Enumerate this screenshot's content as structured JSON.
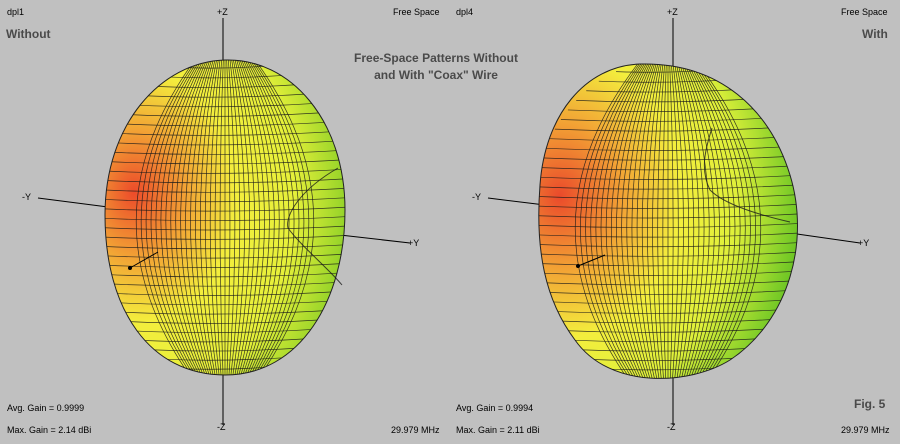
{
  "title": {
    "line1": "Free-Space Patterns Without",
    "line2": "and With \"Coax\" Wire"
  },
  "figure_label": "Fig. 5",
  "panels": [
    {
      "model": "dpl1",
      "environment": "Free Space",
      "variant": "Without",
      "avg_gain": "Avg. Gain = 0.9999",
      "max_gain": "Max. Gain = 2.14 dBi",
      "frequency": "29.979 MHz"
    },
    {
      "model": "dpl4",
      "environment": "Free Space",
      "variant": "With",
      "avg_gain": "Avg. Gain = 0.9994",
      "max_gain": "Max. Gain = 2.11 dBi",
      "frequency": "29.979 MHz"
    }
  ],
  "axes": {
    "z_pos": "+Z",
    "z_neg": "-Z",
    "y_pos": "+Y",
    "y_neg": "-Y"
  },
  "colors": {
    "background": "#c0c0c0",
    "mesh": "#1a1a1a",
    "gain_high": "#e84a2a",
    "gain_mid": "#f7f33a",
    "gain_low": "#4fc21a"
  }
}
